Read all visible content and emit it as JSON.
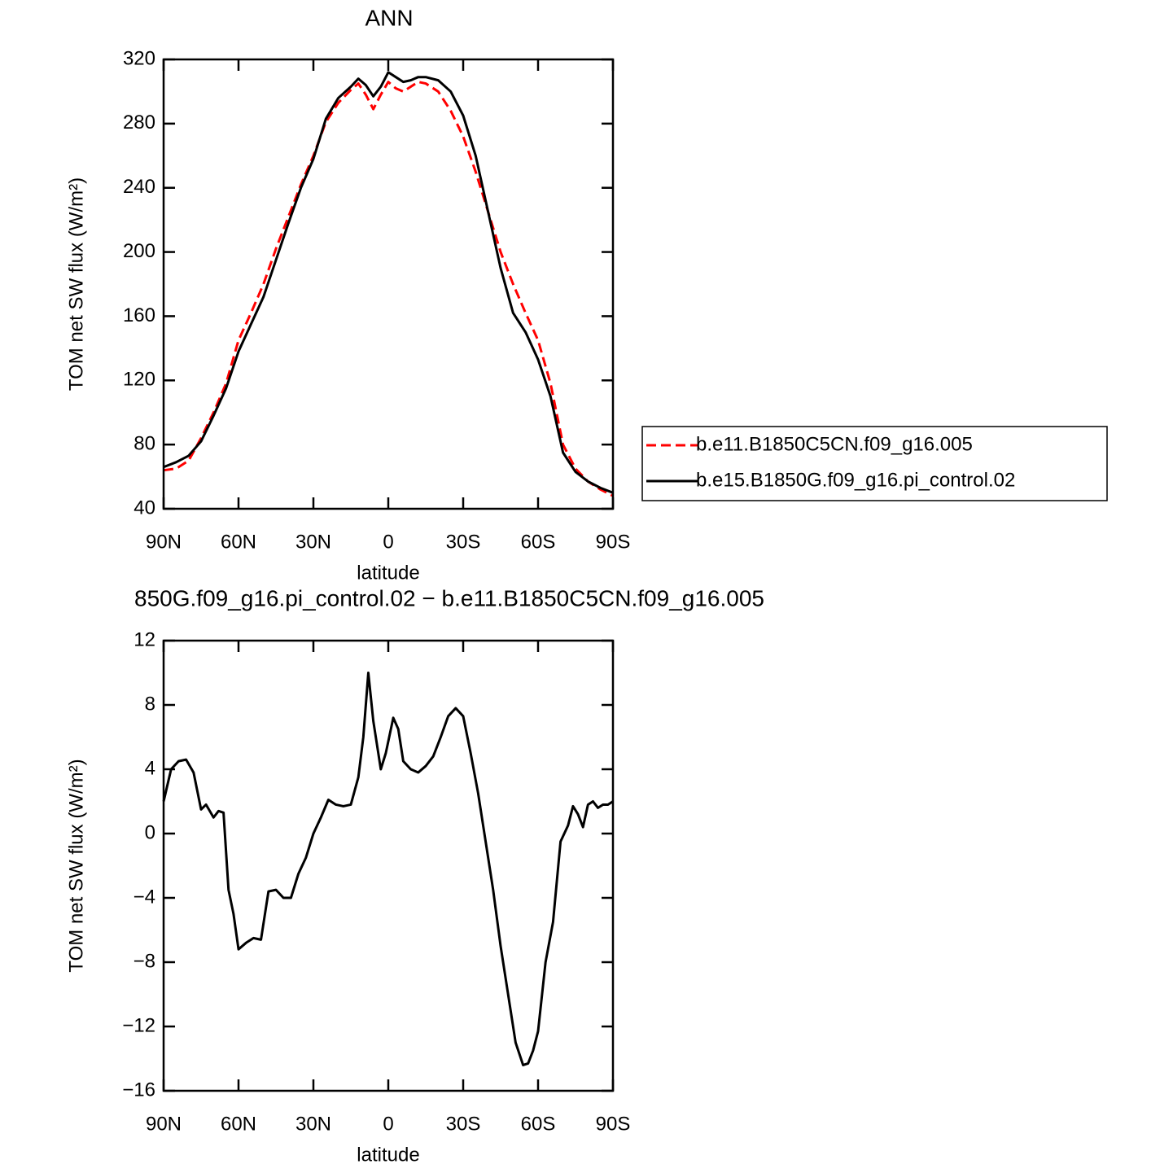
{
  "chart_data": [
    {
      "type": "line",
      "title": "ANN",
      "xlabel": "latitude",
      "ylabel": "TOM net SW flux (W/m²)",
      "x": [
        90,
        85,
        80,
        75,
        70,
        65,
        60,
        55,
        50,
        45,
        40,
        35,
        30,
        25,
        20,
        15,
        12,
        9,
        6,
        3,
        0,
        -3,
        -6,
        -9,
        -12,
        -15,
        -20,
        -25,
        -30,
        -35,
        -40,
        -45,
        -50,
        -55,
        -60,
        -65,
        -70,
        -75,
        -80,
        -85,
        -90
      ],
      "xlim": [
        90,
        -90
      ],
      "xticks": [
        {
          "value": 90,
          "label": "90N"
        },
        {
          "value": 60,
          "label": "60N"
        },
        {
          "value": 30,
          "label": "30N"
        },
        0,
        {
          "value": -30,
          "label": "30S"
        },
        {
          "value": -60,
          "label": "60S"
        },
        {
          "value": -90,
          "label": "90S"
        }
      ],
      "ylim": [
        40,
        320
      ],
      "yticks": [
        40,
        80,
        120,
        160,
        200,
        240,
        280,
        320
      ],
      "legend": "right",
      "series": [
        {
          "name": "b.e11.B1850C5CN.f09_g16.005",
          "color": "#ff0000",
          "dashed": true,
          "values": [
            64,
            65,
            70,
            84,
            100,
            118,
            145,
            162,
            180,
            202,
            222,
            242,
            260,
            281,
            293,
            301,
            305,
            298,
            289,
            298,
            306,
            302,
            300,
            303,
            306,
            305,
            300,
            288,
            272,
            250,
            225,
            200,
            180,
            162,
            145,
            118,
            80,
            65,
            57,
            52,
            48
          ]
        },
        {
          "name": "b.e15.B1850G.f09_g16.pi_control.02",
          "color": "#000000",
          "dashed": false,
          "values": [
            66,
            69,
            73,
            82,
            98,
            115,
            138,
            155,
            172,
            195,
            218,
            240,
            258,
            283,
            296,
            303,
            308,
            304,
            297,
            303,
            312,
            309,
            306,
            307,
            309,
            309,
            307,
            300,
            285,
            260,
            225,
            190,
            162,
            150,
            133,
            110,
            75,
            63,
            57,
            53,
            50
          ]
        }
      ]
    },
    {
      "type": "line",
      "title": "850G.f09_g16.pi_control.02 − b.e11.B1850C5CN.f09_g16.005",
      "xlabel": "latitude",
      "ylabel": "TOM net SW flux (W/m²)",
      "x": [
        90,
        87,
        84,
        81,
        78,
        75,
        73,
        70,
        68,
        66,
        64,
        62,
        60,
        57,
        54,
        51,
        48,
        45,
        42,
        39,
        36,
        33,
        30,
        27,
        24,
        21,
        18,
        15,
        12,
        10,
        8,
        6,
        3,
        1,
        -2,
        -4,
        -6,
        -9,
        -12,
        -15,
        -18,
        -21,
        -24,
        -27,
        -30,
        -33,
        -36,
        -39,
        -42,
        -45,
        -48,
        -51,
        -54,
        -56,
        -58,
        -60,
        -63,
        -66,
        -69,
        -72,
        -74,
        -76,
        -78,
        -80,
        -82,
        -84,
        -86,
        -88,
        -90
      ],
      "xlim": [
        90,
        -90
      ],
      "xticks": [
        {
          "value": 90,
          "label": "90N"
        },
        {
          "value": 60,
          "label": "60N"
        },
        {
          "value": 30,
          "label": "30N"
        },
        0,
        {
          "value": -30,
          "label": "30S"
        },
        {
          "value": -60,
          "label": "60S"
        },
        {
          "value": -90,
          "label": "90S"
        }
      ],
      "ylim": [
        -16,
        12
      ],
      "yticks": [
        {
          "value": -16,
          "label": "−16"
        },
        {
          "value": -12,
          "label": "−12"
        },
        {
          "value": -8,
          "label": "−8"
        },
        {
          "value": -4,
          "label": "−4"
        },
        0,
        4,
        8,
        12
      ],
      "series": [
        {
          "color": "#000000",
          "dashed": false,
          "values": [
            2,
            4,
            4.5,
            4.6,
            3.8,
            1.5,
            1.8,
            1.0,
            1.4,
            1.3,
            -3.5,
            -5,
            -7.2,
            -6.8,
            -6.5,
            -6.6,
            -3.6,
            -3.5,
            -4,
            -4,
            -2.5,
            -1.5,
            0,
            1,
            2.1,
            1.8,
            1.7,
            1.8,
            3.5,
            6,
            10,
            7,
            4,
            5,
            7.2,
            6.5,
            4.5,
            4,
            3.8,
            4.2,
            4.8,
            6,
            7.3,
            7.8,
            7.3,
            5,
            2.5,
            -0.5,
            -3.5,
            -7,
            -10,
            -13,
            -14.4,
            -14.3,
            -13.5,
            -12.3,
            -8,
            -5.5,
            -0.5,
            0.5,
            1.7,
            1.2,
            0.4,
            1.8,
            2,
            1.6,
            1.8,
            1.8,
            2
          ]
        }
      ]
    }
  ]
}
